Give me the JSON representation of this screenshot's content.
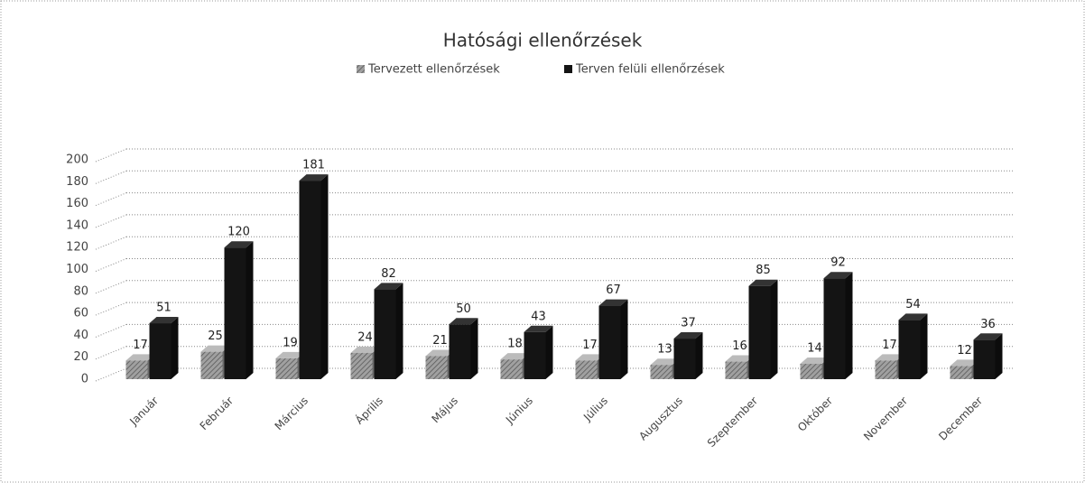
{
  "chart_data": {
    "type": "bar",
    "title": "Hatósági ellenőrzések",
    "categories": [
      "Január",
      "Február",
      "Március",
      "Április",
      "Május",
      "Június",
      "Július",
      "Augusztus",
      "Szeptember",
      "Október",
      "November",
      "December"
    ],
    "series": [
      {
        "name": "Tervezett ellenőrzések",
        "color": "#8a8a8a",
        "values": [
          17,
          25,
          19,
          24,
          21,
          18,
          17,
          13,
          16,
          14,
          17,
          12
        ]
      },
      {
        "name": "Terven felüli ellenőrzések",
        "color": "#141414",
        "values": [
          51,
          120,
          181,
          82,
          50,
          43,
          67,
          37,
          85,
          92,
          54,
          36
        ]
      }
    ],
    "ylim": [
      0,
      200
    ],
    "yticks": [
      0,
      20,
      40,
      60,
      80,
      100,
      120,
      140,
      160,
      180,
      200
    ],
    "grid": true,
    "legend": "top"
  }
}
